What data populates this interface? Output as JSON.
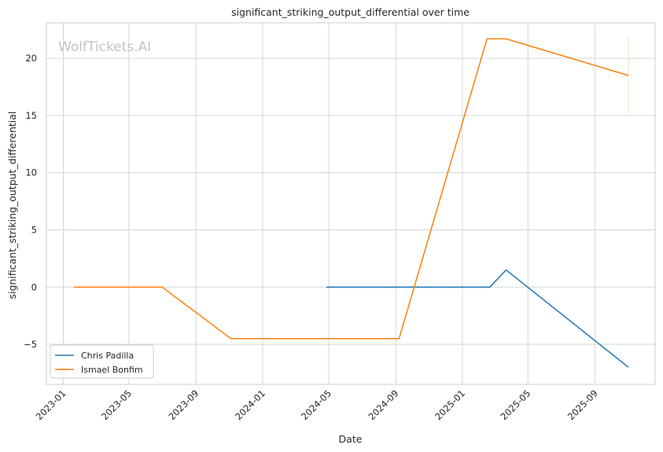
{
  "chart_data": {
    "type": "line",
    "title": "significant_striking_output_differential over time",
    "xlabel": "Date",
    "ylabel": "significant_striking_output_differential",
    "watermark": "WolfTickets.AI",
    "x_tick_labels": [
      "2023-01",
      "2023-05",
      "2023-09",
      "2024-01",
      "2024-05",
      "2024-09",
      "2025-01",
      "2025-05",
      "2025-09"
    ],
    "y_ticks": [
      -5,
      0,
      5,
      10,
      15,
      20
    ],
    "y_tick_labels": [
      "−5",
      "0",
      "5",
      "10",
      "15",
      "20"
    ],
    "xlim": [
      "2022-12-01",
      "2025-12-20"
    ],
    "ylim": [
      -8.5,
      23.1
    ],
    "grid": true,
    "legend_position": "lower-left",
    "series": [
      {
        "name": "Chris Padilla",
        "color": "#1f77b4",
        "points": [
          {
            "x": "2024-04-27",
            "y": 0
          },
          {
            "x": "2025-02-20",
            "y": 0
          },
          {
            "x": "2025-03-22",
            "y": 1.5
          },
          {
            "x": "2025-11-01",
            "y": -7
          }
        ]
      },
      {
        "name": "Ismael Bonfim",
        "color": "#ff7f0e",
        "points": [
          {
            "x": "2023-01-20",
            "y": 0
          },
          {
            "x": "2023-07-01",
            "y": 0
          },
          {
            "x": "2023-11-04",
            "y": -4.5
          },
          {
            "x": "2024-09-07",
            "y": -4.5
          },
          {
            "x": "2025-02-15",
            "y": 21.7
          },
          {
            "x": "2025-03-22",
            "y": 21.7
          },
          {
            "x": "2025-11-01",
            "y": 18.5
          }
        ]
      }
    ],
    "error_bar": {
      "x": "2025-11-01",
      "low": 15.2,
      "high": 21.8,
      "color": "#ffd9bd"
    }
  }
}
